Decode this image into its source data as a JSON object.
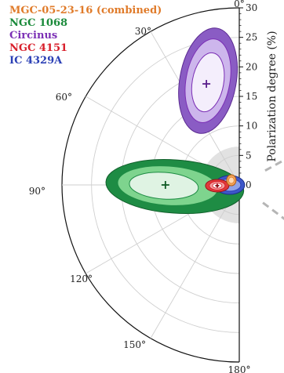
{
  "chart_data": {
    "type": "polar-contour",
    "title": "",
    "radial_axis": {
      "label": "Polarization degree (%)",
      "range": [
        0,
        30
      ],
      "ticks": [
        "0",
        "5",
        "10",
        "15",
        "20",
        "25",
        "30"
      ]
    },
    "angular_axis": {
      "unit": "degrees",
      "range": [
        0,
        180
      ],
      "ticks": [
        "0°",
        "30°",
        "60°",
        "90°",
        "120°",
        "150°",
        "180°"
      ]
    },
    "legend": [
      {
        "name": "MGC-05-23-16 (combined)",
        "color": "#e07b2a"
      },
      {
        "name": "NGC 1068",
        "color": "#1a8a3a"
      },
      {
        "name": "Circinus",
        "color": "#7b2fb5"
      },
      {
        "name": "NGC 4151",
        "color": "#d81e2a"
      },
      {
        "name": "IC 4329A",
        "color": "#2a3fb5"
      }
    ],
    "series": [
      {
        "name": "NGC 1068",
        "center": {
          "angle_deg": 90,
          "pd": 12.5
        },
        "contour_levels": 3
      },
      {
        "name": "Circinus",
        "center": {
          "angle_deg": 18,
          "pd": 18
        },
        "contour_levels": 3
      },
      {
        "name": "NGC 4151",
        "center": {
          "angle_deg": 86,
          "pd": 3.5
        },
        "contour_levels": 3
      },
      {
        "name": "IC 4329A",
        "center": {
          "angle_deg": 88,
          "pd": 4
        },
        "contour_levels": 3
      },
      {
        "name": "MGC-05-23-16 (combined)",
        "center": {
          "angle_deg": 80,
          "pd": 1.5
        },
        "contour_levels": 2
      }
    ],
    "radio_jet_angles_deg": [
      61,
      127
    ]
  }
}
